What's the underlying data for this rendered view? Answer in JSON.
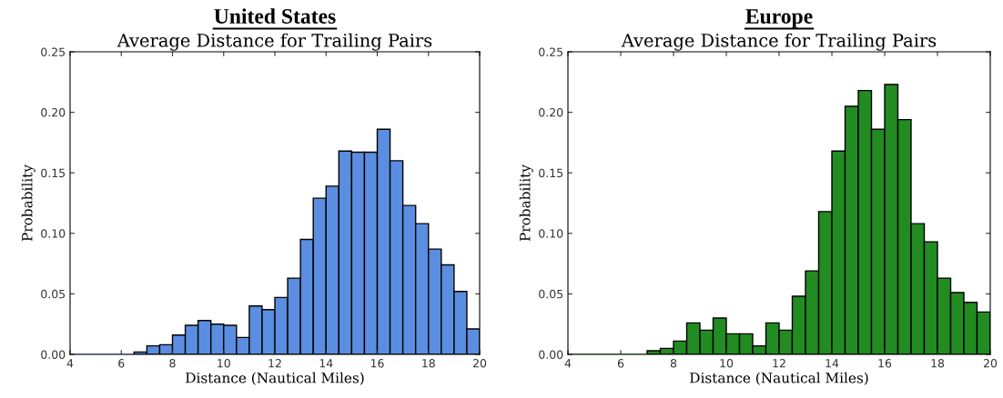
{
  "chart_data": [
    {
      "type": "histogram",
      "title": "United States",
      "subtitle": "Average Distance for Trailing Pairs",
      "xlabel": "Distance (Nautical Miles)",
      "ylabel": "Probability",
      "color": "#5b8ee0",
      "bins": [
        4,
        4.5,
        5,
        5.5,
        6,
        6.5,
        7,
        7.5,
        8,
        8.5,
        9,
        9.5,
        10,
        10.5,
        11,
        11.5,
        12,
        12.5,
        13,
        13.5,
        14,
        14.5,
        15,
        15.5,
        16,
        16.5,
        17,
        17.5,
        18,
        18.5,
        19,
        19.5,
        20
      ],
      "values": [
        0,
        0,
        0,
        0,
        0,
        0.002,
        0.007,
        0.008,
        0.016,
        0.024,
        0.028,
        0.025,
        0.024,
        0.014,
        0.04,
        0.037,
        0.047,
        0.063,
        0.095,
        0.129,
        0.139,
        0.168,
        0.167,
        0.167,
        0.186,
        0.16,
        0.123,
        0.108,
        0.087,
        0.074,
        0.052,
        0.021
      ],
      "xlim": [
        4,
        20
      ],
      "xticks": [
        4,
        6,
        8,
        10,
        12,
        14,
        16,
        18,
        20
      ],
      "ylim": [
        0,
        0.25
      ],
      "yticks": [
        {
          "value": 0,
          "label": "0.00"
        },
        {
          "value": 0.05,
          "label": "0.05"
        },
        {
          "value": 0.1,
          "label": "0.10"
        },
        {
          "value": 0.15,
          "label": "0.15"
        },
        {
          "value": 0.2,
          "label": "0.20"
        },
        {
          "value": 0.25,
          "label": "0.25"
        }
      ],
      "grid": false,
      "legend": false
    },
    {
      "type": "histogram",
      "title": "Europe",
      "subtitle": "Average Distance for Trailing Pairs",
      "xlabel": "Distance (Nautical Miles)",
      "ylabel": "Probability",
      "color": "#228b22",
      "bins": [
        4,
        4.5,
        5,
        5.5,
        6,
        6.5,
        7,
        7.5,
        8,
        8.5,
        9,
        9.5,
        10,
        10.5,
        11,
        11.5,
        12,
        12.5,
        13,
        13.5,
        14,
        14.5,
        15,
        15.5,
        16,
        16.5,
        17,
        17.5,
        18,
        18.5,
        19,
        19.5,
        20
      ],
      "values": [
        0,
        0,
        0,
        0,
        0,
        0,
        0.003,
        0.005,
        0.011,
        0.026,
        0.02,
        0.03,
        0.017,
        0.017,
        0.007,
        0.026,
        0.02,
        0.048,
        0.069,
        0.118,
        0.168,
        0.205,
        0.218,
        0.186,
        0.223,
        0.194,
        0.108,
        0.093,
        0.063,
        0.051,
        0.043,
        0.035
      ],
      "xlim": [
        4,
        20
      ],
      "xticks": [
        4,
        6,
        8,
        10,
        12,
        14,
        16,
        18,
        20
      ],
      "ylim": [
        0,
        0.25
      ],
      "yticks": [
        {
          "value": 0,
          "label": "0.00"
        },
        {
          "value": 0.05,
          "label": "0.05"
        },
        {
          "value": 0.1,
          "label": "0.10"
        },
        {
          "value": 0.15,
          "label": "0.15"
        },
        {
          "value": 0.2,
          "label": "0.20"
        },
        {
          "value": 0.25,
          "label": "0.25"
        }
      ],
      "grid": false,
      "legend": false
    }
  ]
}
